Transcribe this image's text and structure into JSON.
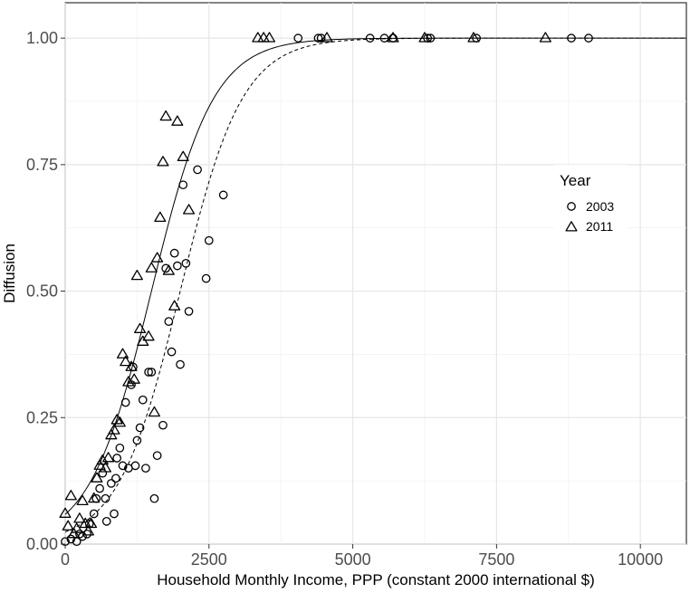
{
  "chart_data": {
    "type": "scatter",
    "title": "",
    "xlabel": "Household Monthly Income, PPP (constant 2000 international $)",
    "ylabel": "Diffusion",
    "xlim": [
      0,
      10800
    ],
    "ylim": [
      0,
      1.07
    ],
    "x_ticks": [
      0,
      2500,
      5000,
      7500,
      10000
    ],
    "x_tick_labels": [
      "0",
      "2500",
      "5000",
      "7500",
      "10000"
    ],
    "y_ticks": [
      0,
      0.25,
      0.5,
      0.75,
      1.0
    ],
    "y_tick_labels": [
      "0.00",
      "0.25",
      "0.50",
      "0.75",
      "1.00"
    ],
    "grid": true,
    "legend": {
      "title": "Year",
      "position": "right",
      "entries": [
        "2003",
        "2011"
      ]
    },
    "series": [
      {
        "name": "2003",
        "marker": "circle",
        "points": [
          [
            0,
            0.005
          ],
          [
            100,
            0.01
          ],
          [
            200,
            0.005
          ],
          [
            250,
            0.02
          ],
          [
            300,
            0.015
          ],
          [
            380,
            0.02
          ],
          [
            420,
            0.04
          ],
          [
            500,
            0.06
          ],
          [
            540,
            0.09
          ],
          [
            600,
            0.11
          ],
          [
            650,
            0.14
          ],
          [
            700,
            0.09
          ],
          [
            720,
            0.045
          ],
          [
            800,
            0.12
          ],
          [
            850,
            0.06
          ],
          [
            880,
            0.13
          ],
          [
            900,
            0.17
          ],
          [
            950,
            0.19
          ],
          [
            1000,
            0.155
          ],
          [
            1050,
            0.28
          ],
          [
            1100,
            0.15
          ],
          [
            1150,
            0.315
          ],
          [
            1180,
            0.35
          ],
          [
            1220,
            0.155
          ],
          [
            1250,
            0.205
          ],
          [
            1300,
            0.23
          ],
          [
            1350,
            0.285
          ],
          [
            1400,
            0.15
          ],
          [
            1450,
            0.34
          ],
          [
            1500,
            0.34
          ],
          [
            1550,
            0.09
          ],
          [
            1600,
            0.175
          ],
          [
            1700,
            0.235
          ],
          [
            1750,
            0.545
          ],
          [
            1800,
            0.44
          ],
          [
            1850,
            0.38
          ],
          [
            1900,
            0.575
          ],
          [
            1950,
            0.55
          ],
          [
            2000,
            0.355
          ],
          [
            2050,
            0.71
          ],
          [
            2100,
            0.555
          ],
          [
            2150,
            0.46
          ],
          [
            2300,
            0.74
          ],
          [
            2450,
            0.525
          ],
          [
            2500,
            0.6
          ],
          [
            2750,
            0.69
          ],
          [
            4050,
            1.0
          ],
          [
            4400,
            1.0
          ],
          [
            4450,
            1.0
          ],
          [
            5300,
            1.0
          ],
          [
            5550,
            1.0
          ],
          [
            5700,
            1.0
          ],
          [
            6300,
            1.0
          ],
          [
            6350,
            1.0
          ],
          [
            7150,
            1.0
          ],
          [
            8800,
            1.0
          ],
          [
            9100,
            1.0
          ]
        ]
      },
      {
        "name": "2011",
        "marker": "triangle",
        "points": [
          [
            0,
            0.06
          ],
          [
            50,
            0.035
          ],
          [
            100,
            0.095
          ],
          [
            150,
            0.02
          ],
          [
            200,
            0.03
          ],
          [
            250,
            0.05
          ],
          [
            300,
            0.085
          ],
          [
            350,
            0.04
          ],
          [
            400,
            0.025
          ],
          [
            450,
            0.04
          ],
          [
            500,
            0.09
          ],
          [
            550,
            0.13
          ],
          [
            600,
            0.155
          ],
          [
            650,
            0.165
          ],
          [
            700,
            0.15
          ],
          [
            750,
            0.17
          ],
          [
            800,
            0.215
          ],
          [
            850,
            0.225
          ],
          [
            900,
            0.245
          ],
          [
            950,
            0.24
          ],
          [
            1000,
            0.375
          ],
          [
            1050,
            0.36
          ],
          [
            1100,
            0.32
          ],
          [
            1150,
            0.35
          ],
          [
            1200,
            0.325
          ],
          [
            1250,
            0.53
          ],
          [
            1300,
            0.425
          ],
          [
            1350,
            0.4
          ],
          [
            1450,
            0.41
          ],
          [
            1500,
            0.545
          ],
          [
            1550,
            0.26
          ],
          [
            1600,
            0.565
          ],
          [
            1650,
            0.645
          ],
          [
            1700,
            0.755
          ],
          [
            1750,
            0.845
          ],
          [
            1800,
            0.54
          ],
          [
            1900,
            0.47
          ],
          [
            1950,
            0.835
          ],
          [
            2050,
            0.765
          ],
          [
            2150,
            0.66
          ],
          [
            3350,
            1.0
          ],
          [
            3450,
            1.0
          ],
          [
            3550,
            1.0
          ],
          [
            4550,
            1.0
          ],
          [
            5700,
            1.0
          ],
          [
            6250,
            1.0
          ],
          [
            7100,
            1.0
          ],
          [
            8350,
            1.0
          ]
        ]
      }
    ],
    "fitted_curves": [
      {
        "name": "2011",
        "style": "solid",
        "midpoint": 1500,
        "slope": 0.00185,
        "x_range": [
          0,
          10800
        ]
      },
      {
        "name": "2003",
        "style": "dashed",
        "midpoint": 2000,
        "slope": 0.00185,
        "x_range": [
          0,
          10800
        ]
      }
    ]
  }
}
